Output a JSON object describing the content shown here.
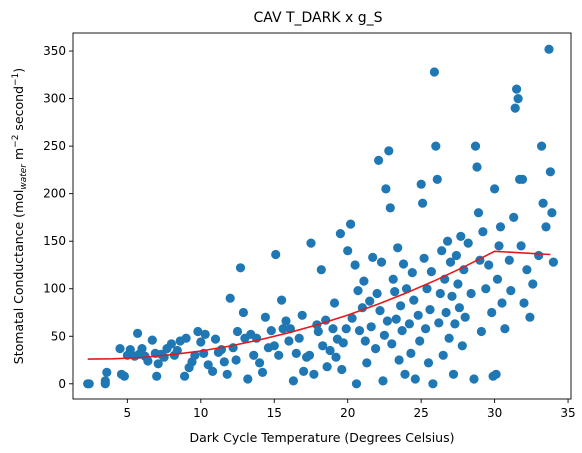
{
  "chart_data": {
    "type": "scatter",
    "title": "CAV T_DARK x g_S",
    "xlabel": "Dark Cycle Temperature (Degrees Celsius)",
    "ylabel": {
      "prefix": "Stomatal Conductance (mol",
      "sub": "water",
      "mid": " m",
      "sup1": "−2",
      "mid2": " second",
      "sup2": "−1",
      "suffix": ")"
    },
    "xlim": [
      1.3,
      35.2
    ],
    "ylim": [
      -16,
      369
    ],
    "xticks": [
      5,
      10,
      15,
      20,
      25,
      30,
      35
    ],
    "yticks": [
      0,
      50,
      100,
      150,
      200,
      250,
      300,
      350
    ],
    "grid": false,
    "colors": {
      "points": "#1f77b4",
      "fit": "#e31a1c",
      "axes": "#000000"
    },
    "series": [
      {
        "kind": "scatter",
        "points": [
          [
            2.3,
            0
          ],
          [
            2.4,
            0
          ],
          [
            3.5,
            0
          ],
          [
            3.5,
            3
          ],
          [
            3.6,
            12
          ],
          [
            4.5,
            37
          ],
          [
            4.6,
            10
          ],
          [
            4.8,
            8
          ],
          [
            5.0,
            30
          ],
          [
            5.2,
            36
          ],
          [
            5.5,
            29
          ],
          [
            5.7,
            53
          ],
          [
            5.8,
            31
          ],
          [
            6.0,
            37
          ],
          [
            6.2,
            29
          ],
          [
            6.4,
            24
          ],
          [
            6.7,
            46
          ],
          [
            6.9,
            32
          ],
          [
            7.0,
            8
          ],
          [
            7.1,
            21
          ],
          [
            7.3,
            31
          ],
          [
            7.5,
            28
          ],
          [
            7.7,
            37
          ],
          [
            8.0,
            42
          ],
          [
            8.2,
            30
          ],
          [
            8.4,
            35
          ],
          [
            8.6,
            45
          ],
          [
            8.9,
            8
          ],
          [
            9.0,
            48
          ],
          [
            9.2,
            17
          ],
          [
            9.4,
            23
          ],
          [
            9.6,
            30
          ],
          [
            9.8,
            55
          ],
          [
            10.0,
            44
          ],
          [
            10.2,
            32
          ],
          [
            10.3,
            52
          ],
          [
            10.5,
            20
          ],
          [
            10.8,
            13
          ],
          [
            11.0,
            47
          ],
          [
            11.2,
            33
          ],
          [
            11.4,
            36
          ],
          [
            11.6,
            23
          ],
          [
            11.8,
            10
          ],
          [
            12.0,
            90
          ],
          [
            12.2,
            38
          ],
          [
            12.4,
            25
          ],
          [
            12.5,
            55
          ],
          [
            12.7,
            122
          ],
          [
            12.9,
            75
          ],
          [
            13.0,
            48
          ],
          [
            13.2,
            5
          ],
          [
            13.4,
            52
          ],
          [
            13.6,
            30
          ],
          [
            13.8,
            48
          ],
          [
            14.0,
            22
          ],
          [
            14.2,
            12
          ],
          [
            14.4,
            70
          ],
          [
            14.6,
            38
          ],
          [
            14.8,
            56
          ],
          [
            15.0,
            40
          ],
          [
            15.1,
            136
          ],
          [
            15.3,
            30
          ],
          [
            15.5,
            88
          ],
          [
            15.6,
            58
          ],
          [
            15.8,
            66
          ],
          [
            16.0,
            45
          ],
          [
            16.1,
            58
          ],
          [
            16.3,
            3
          ],
          [
            16.5,
            32
          ],
          [
            16.7,
            48
          ],
          [
            16.9,
            72
          ],
          [
            17.0,
            13
          ],
          [
            17.2,
            28
          ],
          [
            17.4,
            30
          ],
          [
            17.5,
            148
          ],
          [
            17.7,
            10
          ],
          [
            17.9,
            62
          ],
          [
            18.0,
            55
          ],
          [
            18.2,
            120
          ],
          [
            18.3,
            40
          ],
          [
            18.5,
            67
          ],
          [
            18.6,
            18
          ],
          [
            18.8,
            35
          ],
          [
            19.0,
            58
          ],
          [
            19.1,
            85
          ],
          [
            19.2,
            28
          ],
          [
            19.3,
            47
          ],
          [
            19.5,
            158
          ],
          [
            19.6,
            15
          ],
          [
            19.7,
            43
          ],
          [
            19.9,
            58
          ],
          [
            20.0,
            140
          ],
          [
            20.2,
            168
          ],
          [
            20.3,
            69
          ],
          [
            20.5,
            125
          ],
          [
            20.6,
            0
          ],
          [
            20.7,
            98
          ],
          [
            20.8,
            56
          ],
          [
            21.0,
            80
          ],
          [
            21.1,
            108
          ],
          [
            21.2,
            45
          ],
          [
            21.3,
            22
          ],
          [
            21.5,
            87
          ],
          [
            21.6,
            60
          ],
          [
            21.7,
            133
          ],
          [
            21.9,
            37
          ],
          [
            22.0,
            95
          ],
          [
            22.1,
            235
          ],
          [
            22.2,
            77
          ],
          [
            22.3,
            128
          ],
          [
            22.4,
            3
          ],
          [
            22.5,
            51
          ],
          [
            22.6,
            205
          ],
          [
            22.7,
            66
          ],
          [
            22.8,
            245
          ],
          [
            22.9,
            185
          ],
          [
            23.0,
            42
          ],
          [
            23.1,
            110
          ],
          [
            23.2,
            97
          ],
          [
            23.3,
            68
          ],
          [
            23.4,
            143
          ],
          [
            23.5,
            25
          ],
          [
            23.6,
            82
          ],
          [
            23.7,
            56
          ],
          [
            23.8,
            126
          ],
          [
            23.9,
            10
          ],
          [
            24.0,
            100
          ],
          [
            24.2,
            63
          ],
          [
            24.3,
            32
          ],
          [
            24.4,
            117
          ],
          [
            24.5,
            88
          ],
          [
            24.6,
            5
          ],
          [
            24.8,
            72
          ],
          [
            24.9,
            45
          ],
          [
            25.0,
            210
          ],
          [
            25.1,
            190
          ],
          [
            25.2,
            132
          ],
          [
            25.3,
            58
          ],
          [
            25.4,
            100
          ],
          [
            25.5,
            22
          ],
          [
            25.6,
            78
          ],
          [
            25.7,
            118
          ],
          [
            25.8,
            0
          ],
          [
            25.9,
            328
          ],
          [
            26.0,
            250
          ],
          [
            26.1,
            215
          ],
          [
            26.2,
            64
          ],
          [
            26.3,
            95
          ],
          [
            26.4,
            140
          ],
          [
            26.5,
            30
          ],
          [
            26.6,
            110
          ],
          [
            26.7,
            75
          ],
          [
            26.8,
            150
          ],
          [
            26.9,
            48
          ],
          [
            27.0,
            128
          ],
          [
            27.1,
            92
          ],
          [
            27.2,
            10
          ],
          [
            27.3,
            63
          ],
          [
            27.4,
            135
          ],
          [
            27.5,
            105
          ],
          [
            27.6,
            80
          ],
          [
            27.7,
            155
          ],
          [
            27.8,
            40
          ],
          [
            27.9,
            120
          ],
          [
            28.0,
            70
          ],
          [
            28.2,
            148
          ],
          [
            28.4,
            95
          ],
          [
            28.6,
            5
          ],
          [
            28.7,
            250
          ],
          [
            28.8,
            228
          ],
          [
            28.9,
            180
          ],
          [
            29.0,
            130
          ],
          [
            29.1,
            55
          ],
          [
            29.2,
            160
          ],
          [
            29.4,
            100
          ],
          [
            29.6,
            125
          ],
          [
            29.8,
            75
          ],
          [
            29.9,
            8
          ],
          [
            30.0,
            205
          ],
          [
            30.1,
            10
          ],
          [
            30.2,
            110
          ],
          [
            30.3,
            145
          ],
          [
            30.4,
            165
          ],
          [
            30.5,
            85
          ],
          [
            30.7,
            58
          ],
          [
            31.0,
            130
          ],
          [
            31.1,
            98
          ],
          [
            31.3,
            175
          ],
          [
            31.4,
            290
          ],
          [
            31.5,
            310
          ],
          [
            31.6,
            300
          ],
          [
            31.7,
            215
          ],
          [
            31.8,
            145
          ],
          [
            31.9,
            215
          ],
          [
            32.0,
            85
          ],
          [
            32.2,
            120
          ],
          [
            32.4,
            70
          ],
          [
            32.6,
            105
          ],
          [
            33.0,
            135
          ],
          [
            33.2,
            250
          ],
          [
            33.3,
            190
          ],
          [
            33.5,
            165
          ],
          [
            33.7,
            352
          ],
          [
            33.8,
            223
          ],
          [
            33.9,
            180
          ],
          [
            34.0,
            128
          ]
        ]
      },
      {
        "kind": "line",
        "points": [
          [
            2.3,
            26
          ],
          [
            4,
            26.3
          ],
          [
            6,
            27.7
          ],
          [
            8,
            30.6
          ],
          [
            10,
            34.5
          ],
          [
            12,
            39.8
          ],
          [
            14,
            46.2
          ],
          [
            16,
            53.7
          ],
          [
            18,
            62.4
          ],
          [
            20,
            72.3
          ],
          [
            22,
            83.4
          ],
          [
            24,
            95.6
          ],
          [
            26,
            109
          ],
          [
            28,
            123.6
          ],
          [
            30,
            139.4
          ],
          [
            33.8,
            136
          ]
        ]
      }
    ]
  }
}
